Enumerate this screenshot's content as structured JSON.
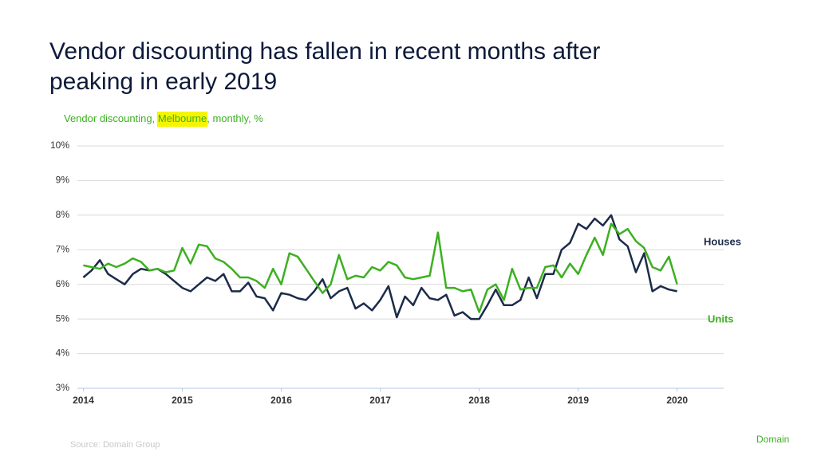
{
  "chart_data": {
    "type": "line",
    "title": [
      "Vendor discounting  has fallen in recent months after",
      "peaking in early 2019"
    ],
    "subtitle": [
      "Vendor discounting, ",
      "Melbourne",
      ", monthly, %"
    ],
    "source": "Source: Domain Group",
    "brand": "Domain",
    "x": [
      2014.0,
      2014.083,
      2014.167,
      2014.25,
      2014.333,
      2014.417,
      2014.5,
      2014.583,
      2014.667,
      2014.75,
      2014.833,
      2014.917,
      2015.0,
      2015.083,
      2015.167,
      2015.25,
      2015.333,
      2015.417,
      2015.5,
      2015.583,
      2015.667,
      2015.75,
      2015.833,
      2015.917,
      2016.0,
      2016.083,
      2016.167,
      2016.25,
      2016.333,
      2016.417,
      2016.5,
      2016.583,
      2016.667,
      2016.75,
      2016.833,
      2016.917,
      2017.0,
      2017.083,
      2017.167,
      2017.25,
      2017.333,
      2017.417,
      2017.5,
      2017.583,
      2017.667,
      2017.75,
      2017.833,
      2017.917,
      2018.0,
      2018.083,
      2018.167,
      2018.25,
      2018.333,
      2018.417,
      2018.5,
      2018.583,
      2018.667,
      2018.75,
      2018.833,
      2018.917,
      2019.0,
      2019.083,
      2019.167,
      2019.25,
      2019.333,
      2019.417,
      2019.5,
      2019.583,
      2019.667,
      2019.75,
      2019.833,
      2019.917,
      2020.0
    ],
    "series": [
      {
        "name": "Houses",
        "color": "#1c2b4a",
        "values": [
          6.2,
          6.4,
          6.7,
          6.3,
          6.15,
          6.0,
          6.3,
          6.45,
          6.4,
          6.45,
          6.3,
          6.1,
          5.9,
          5.8,
          6.0,
          6.2,
          6.1,
          6.3,
          5.8,
          5.8,
          6.05,
          5.65,
          5.6,
          5.25,
          5.75,
          5.7,
          5.6,
          5.55,
          5.8,
          6.15,
          5.6,
          5.8,
          5.9,
          5.3,
          5.45,
          5.25,
          5.55,
          5.95,
          5.05,
          5.65,
          5.4,
          5.9,
          5.6,
          5.55,
          5.7,
          5.1,
          5.2,
          5.0,
          5.0,
          5.4,
          5.85,
          5.4,
          5.4,
          5.55,
          6.2,
          5.6,
          6.3,
          6.3,
          7.0,
          7.2,
          7.75,
          7.6,
          7.9,
          7.7,
          8.0,
          7.3,
          7.1,
          6.35,
          6.9,
          5.8,
          5.95,
          5.85,
          5.8
        ]
      },
      {
        "name": "Units",
        "color": "#3cb021",
        "values": [
          6.55,
          6.5,
          6.45,
          6.6,
          6.5,
          6.6,
          6.75,
          6.65,
          6.4,
          6.45,
          6.35,
          6.4,
          7.05,
          6.6,
          7.15,
          7.1,
          6.75,
          6.65,
          6.45,
          6.2,
          6.2,
          6.1,
          5.9,
          6.45,
          6.0,
          6.9,
          6.8,
          6.45,
          6.1,
          5.75,
          6.0,
          6.85,
          6.15,
          6.25,
          6.2,
          6.5,
          6.4,
          6.65,
          6.55,
          6.2,
          6.15,
          6.2,
          6.25,
          7.5,
          5.9,
          5.9,
          5.8,
          5.85,
          5.2,
          5.85,
          6.0,
          5.55,
          6.45,
          5.85,
          5.9,
          5.9,
          6.5,
          6.55,
          6.2,
          6.6,
          6.3,
          6.85,
          7.35,
          6.85,
          7.75,
          7.45,
          7.6,
          7.25,
          7.05,
          6.5,
          6.4,
          6.8,
          6.0
        ]
      }
    ],
    "xlim": [
      2013.94,
      2020.47
    ],
    "xticks": [
      2014,
      2015,
      2016,
      2017,
      2018,
      2019,
      2020
    ],
    "ylim": [
      3,
      10
    ],
    "yticks": [
      {
        "value": 3,
        "label": "3%"
      },
      {
        "value": 4,
        "label": "4%"
      },
      {
        "value": 5,
        "label": "5%"
      },
      {
        "value": 6,
        "label": "6%"
      },
      {
        "value": 7,
        "label": "7%"
      },
      {
        "value": 8,
        "label": "8%"
      },
      {
        "value": 9,
        "label": "9%"
      },
      {
        "value": 10,
        "label": "10%"
      }
    ],
    "grid": true
  }
}
